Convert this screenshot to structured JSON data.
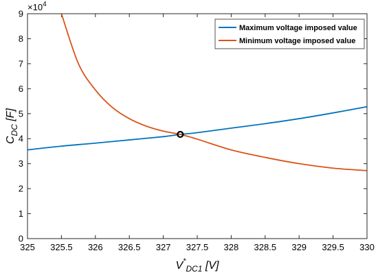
{
  "chart_data": {
    "type": "line",
    "xlabel": {
      "main": "V",
      "sup": "*",
      "sub": "DC1",
      "unit": " [V]"
    },
    "ylabel": {
      "main": "C",
      "sub": "DC",
      "unit": " [F]"
    },
    "y_exponent_label": "×10",
    "y_exponent": "4",
    "xlim": [
      325,
      330
    ],
    "ylim": [
      0,
      9
    ],
    "x_ticks": [
      325,
      325.5,
      326,
      326.5,
      327,
      327.5,
      328,
      328.5,
      329,
      329.5,
      330
    ],
    "y_ticks": [
      0,
      1,
      2,
      3,
      4,
      5,
      6,
      7,
      8,
      9
    ],
    "x_tick_labels": [
      "325",
      "325.5",
      "326",
      "326.5",
      "327",
      "327.5",
      "328",
      "328.5",
      "329",
      "329.5",
      "330"
    ],
    "y_tick_labels": [
      "0",
      "1",
      "2",
      "3",
      "4",
      "5",
      "6",
      "7",
      "8",
      "9"
    ],
    "legend_position": "top-right",
    "series": [
      {
        "name": "Maximum voltage imposed value",
        "color": "#0072BD",
        "x": [
          325,
          325.5,
          326,
          326.5,
          327,
          327.25,
          327.5,
          328,
          328.5,
          329,
          329.5,
          330
        ],
        "y": [
          3.55,
          3.7,
          3.82,
          3.95,
          4.08,
          4.17,
          4.24,
          4.42,
          4.6,
          4.8,
          5.03,
          5.28
        ]
      },
      {
        "name": "Minimum voltage imposed value",
        "color": "#D95319",
        "x": [
          325.5,
          325.75,
          326,
          326.25,
          326.5,
          326.75,
          327,
          327.25,
          327.5,
          328,
          328.5,
          329,
          329.5,
          330
        ],
        "y": [
          9.0,
          7.0,
          5.95,
          5.25,
          4.8,
          4.5,
          4.3,
          4.17,
          3.98,
          3.55,
          3.25,
          3.0,
          2.82,
          2.72
        ]
      }
    ],
    "intersection_marker": {
      "x": 327.25,
      "y": 4.17
    }
  }
}
